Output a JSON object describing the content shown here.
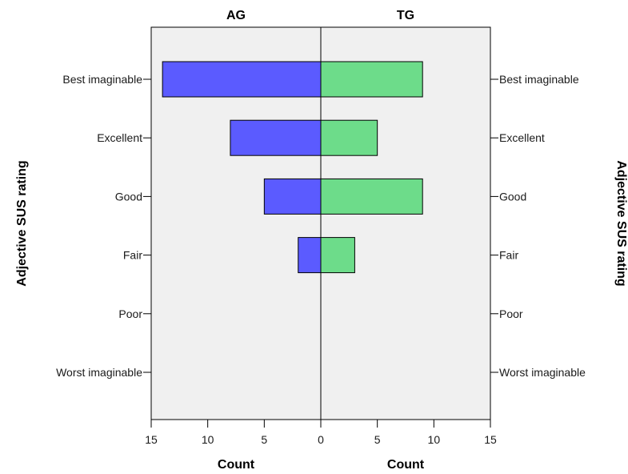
{
  "chart_data": {
    "type": "bar",
    "orientation": "horizontal",
    "layout": "back-to-back",
    "categories": [
      "Best imaginable",
      "Excellent",
      "Good",
      "Fair",
      "Poor",
      "Worst imaginable"
    ],
    "series": [
      {
        "name": "AG",
        "values": [
          14,
          8,
          5,
          2,
          0,
          0
        ],
        "color": "#5b5bff"
      },
      {
        "name": "TG",
        "values": [
          9,
          5,
          9,
          3,
          0,
          0
        ],
        "color": "#6ddc8a"
      }
    ],
    "xlabel_left": "Count",
    "xlabel_right": "Count",
    "ylabel_left": "Adjective SUS rating",
    "ylabel_right": "Adjective SUS rating",
    "xlim": [
      0,
      15
    ],
    "xticks": [
      0,
      5,
      10,
      15
    ],
    "background": "#f0f0f0",
    "grid": false
  }
}
